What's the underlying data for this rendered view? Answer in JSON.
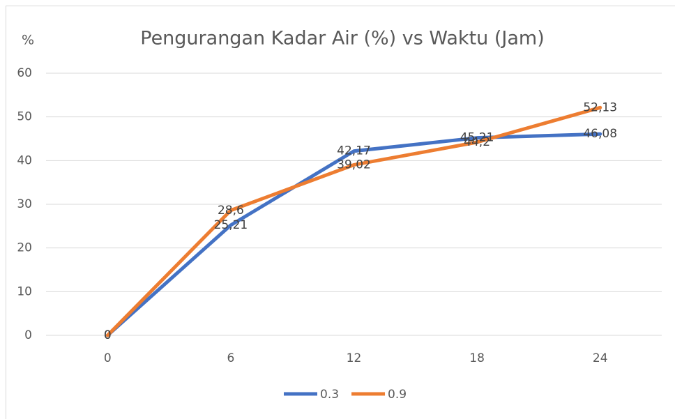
{
  "chart_data": {
    "type": "line",
    "title": "Pengurangan Kadar Air (%) vs Waktu (Jam)",
    "y_label": "%",
    "categories": [
      "0",
      "6",
      "12",
      "18",
      "24"
    ],
    "series": [
      {
        "name": "0.3",
        "color": "#4472c4",
        "values": [
          0,
          25.21,
          42.17,
          45.21,
          46.08
        ],
        "value_labels": [
          "0",
          "25,21",
          "42,17",
          "45,21",
          "46,08"
        ]
      },
      {
        "name": "0.9",
        "color": "#ed7d31",
        "values": [
          0,
          28.6,
          39.02,
          44.2,
          52.13
        ],
        "value_labels": [
          "0",
          "28,6",
          "39,02",
          "44,2",
          "52,13"
        ]
      }
    ],
    "ylim": [
      0,
      60
    ],
    "yticks": [
      0,
      10,
      20,
      30,
      40,
      50,
      60
    ],
    "grid": true,
    "legend": "bottom"
  }
}
